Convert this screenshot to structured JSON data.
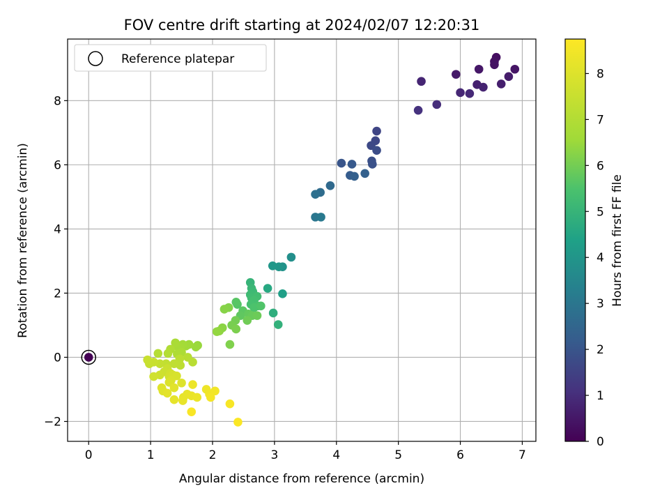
{
  "chart_data": {
    "type": "scatter",
    "title": "FOV centre drift starting at 2024/02/07 12:20:31",
    "xlabel": "Angular distance from reference (arcmin)",
    "ylabel": "Rotation from reference (arcmin)",
    "xlim": [
      -0.34,
      7.22
    ],
    "ylim": [
      -2.62,
      9.92
    ],
    "xticks": [
      0,
      1,
      2,
      3,
      4,
      5,
      6,
      7
    ],
    "yticks": [
      -2,
      0,
      2,
      4,
      6,
      8
    ],
    "xtick_labels": [
      "0",
      "1",
      "2",
      "3",
      "4",
      "5",
      "6",
      "7"
    ],
    "ytick_labels": [
      "−2",
      "0",
      "2",
      "4",
      "6",
      "8"
    ],
    "grid": true,
    "colormap": "viridis",
    "colorbar": {
      "label": "Hours from first FF file",
      "range": [
        0,
        8.75
      ],
      "ticks": [
        0,
        1,
        2,
        3,
        4,
        5,
        6,
        7,
        8
      ],
      "tick_labels": [
        "0",
        "1",
        "2",
        "3",
        "4",
        "5",
        "6",
        "7",
        "8"
      ]
    },
    "legend": {
      "position": "top-left",
      "entries": [
        "Reference platepar"
      ]
    },
    "reference_point": {
      "x": 0,
      "y": 0
    },
    "points": [
      {
        "x": 6.58,
        "y": 9.35,
        "c": 0.3
      },
      {
        "x": 6.55,
        "y": 9.22,
        "c": 0.35
      },
      {
        "x": 6.55,
        "y": 9.12,
        "c": 0.4
      },
      {
        "x": 6.88,
        "y": 8.98,
        "c": 0.45
      },
      {
        "x": 6.3,
        "y": 8.98,
        "c": 0.5
      },
      {
        "x": 5.93,
        "y": 8.82,
        "c": 0.55
      },
      {
        "x": 6.78,
        "y": 8.75,
        "c": 0.6
      },
      {
        "x": 6.66,
        "y": 8.52,
        "c": 0.65
      },
      {
        "x": 6.27,
        "y": 8.5,
        "c": 0.7
      },
      {
        "x": 6.37,
        "y": 8.42,
        "c": 0.75
      },
      {
        "x": 5.37,
        "y": 8.6,
        "c": 0.8
      },
      {
        "x": 6.0,
        "y": 8.25,
        "c": 0.85
      },
      {
        "x": 6.15,
        "y": 8.22,
        "c": 0.9
      },
      {
        "x": 5.62,
        "y": 7.88,
        "c": 1.0
      },
      {
        "x": 5.32,
        "y": 7.7,
        "c": 1.1
      },
      {
        "x": 4.65,
        "y": 7.05,
        "c": 1.6
      },
      {
        "x": 4.63,
        "y": 6.75,
        "c": 1.65
      },
      {
        "x": 4.56,
        "y": 6.6,
        "c": 1.7
      },
      {
        "x": 4.65,
        "y": 6.45,
        "c": 1.8
      },
      {
        "x": 4.57,
        "y": 6.12,
        "c": 1.85
      },
      {
        "x": 4.58,
        "y": 6.02,
        "c": 1.9
      },
      {
        "x": 4.08,
        "y": 6.05,
        "c": 2.0
      },
      {
        "x": 4.25,
        "y": 6.02,
        "c": 2.1
      },
      {
        "x": 4.22,
        "y": 5.67,
        "c": 2.2
      },
      {
        "x": 4.29,
        "y": 5.64,
        "c": 2.3
      },
      {
        "x": 4.46,
        "y": 5.73,
        "c": 2.35
      },
      {
        "x": 3.9,
        "y": 5.35,
        "c": 2.6
      },
      {
        "x": 3.74,
        "y": 5.14,
        "c": 2.7
      },
      {
        "x": 3.66,
        "y": 5.08,
        "c": 2.8
      },
      {
        "x": 3.66,
        "y": 4.37,
        "c": 3.0
      },
      {
        "x": 3.75,
        "y": 4.37,
        "c": 3.1
      },
      {
        "x": 3.27,
        "y": 3.12,
        "c": 3.8
      },
      {
        "x": 3.13,
        "y": 2.82,
        "c": 3.9
      },
      {
        "x": 3.07,
        "y": 2.82,
        "c": 4.0
      },
      {
        "x": 2.97,
        "y": 2.85,
        "c": 4.05
      },
      {
        "x": 3.13,
        "y": 1.98,
        "c": 4.3
      },
      {
        "x": 2.89,
        "y": 2.15,
        "c": 4.6
      },
      {
        "x": 2.98,
        "y": 1.38,
        "c": 4.8
      },
      {
        "x": 3.06,
        "y": 1.02,
        "c": 4.9
      },
      {
        "x": 2.61,
        "y": 2.33,
        "c": 5.0
      },
      {
        "x": 2.63,
        "y": 2.15,
        "c": 5.1
      },
      {
        "x": 2.65,
        "y": 2.05,
        "c": 5.15
      },
      {
        "x": 2.61,
        "y": 1.95,
        "c": 5.2
      },
      {
        "x": 2.63,
        "y": 1.85,
        "c": 5.25
      },
      {
        "x": 2.72,
        "y": 1.9,
        "c": 5.3
      },
      {
        "x": 2.67,
        "y": 1.78,
        "c": 5.35
      },
      {
        "x": 2.62,
        "y": 1.65,
        "c": 5.4
      },
      {
        "x": 2.73,
        "y": 1.6,
        "c": 5.45
      },
      {
        "x": 2.67,
        "y": 1.55,
        "c": 5.5
      },
      {
        "x": 2.78,
        "y": 1.6,
        "c": 5.55
      },
      {
        "x": 2.4,
        "y": 1.65,
        "c": 5.6
      },
      {
        "x": 2.38,
        "y": 1.72,
        "c": 5.65
      },
      {
        "x": 2.49,
        "y": 1.45,
        "c": 5.7
      },
      {
        "x": 2.45,
        "y": 1.3,
        "c": 5.75
      },
      {
        "x": 2.58,
        "y": 1.35,
        "c": 5.8
      },
      {
        "x": 2.64,
        "y": 1.3,
        "c": 5.85
      },
      {
        "x": 2.72,
        "y": 1.3,
        "c": 5.9
      },
      {
        "x": 2.56,
        "y": 1.15,
        "c": 5.95
      },
      {
        "x": 2.37,
        "y": 1.15,
        "c": 6.0
      },
      {
        "x": 2.31,
        "y": 1.0,
        "c": 6.05
      },
      {
        "x": 2.38,
        "y": 0.88,
        "c": 6.1
      },
      {
        "x": 2.28,
        "y": 0.4,
        "c": 6.15
      },
      {
        "x": 2.26,
        "y": 1.55,
        "c": 6.2
      },
      {
        "x": 2.19,
        "y": 1.5,
        "c": 6.25
      },
      {
        "x": 2.16,
        "y": 0.92,
        "c": 6.3
      },
      {
        "x": 2.11,
        "y": 0.82,
        "c": 6.35
      },
      {
        "x": 2.07,
        "y": 0.8,
        "c": 6.4
      },
      {
        "x": 1.76,
        "y": 0.37,
        "c": 6.45
      },
      {
        "x": 1.73,
        "y": 0.32,
        "c": 6.5
      },
      {
        "x": 1.62,
        "y": 0.4,
        "c": 6.55
      },
      {
        "x": 1.57,
        "y": 0.35,
        "c": 6.6
      },
      {
        "x": 1.52,
        "y": 0.4,
        "c": 6.65
      },
      {
        "x": 1.48,
        "y": 0.28,
        "c": 6.7
      },
      {
        "x": 1.42,
        "y": 0.35,
        "c": 6.75
      },
      {
        "x": 1.4,
        "y": 0.45,
        "c": 6.8
      },
      {
        "x": 1.5,
        "y": 0.15,
        "c": 6.85
      },
      {
        "x": 1.43,
        "y": 0.1,
        "c": 6.9
      },
      {
        "x": 1.32,
        "y": 0.25,
        "c": 6.95
      },
      {
        "x": 1.28,
        "y": 0.12,
        "c": 7.0
      },
      {
        "x": 1.12,
        "y": 0.12,
        "c": 7.05
      },
      {
        "x": 1.6,
        "y": 0.0,
        "c": 7.1
      },
      {
        "x": 1.68,
        "y": -0.15,
        "c": 7.15
      },
      {
        "x": 1.47,
        "y": -0.05,
        "c": 7.2
      },
      {
        "x": 1.48,
        "y": -0.25,
        "c": 7.25
      },
      {
        "x": 1.38,
        "y": -0.2,
        "c": 7.3
      },
      {
        "x": 1.25,
        "y": -0.2,
        "c": 7.35
      },
      {
        "x": 1.15,
        "y": -0.2,
        "c": 7.4
      },
      {
        "x": 0.98,
        "y": -0.2,
        "c": 7.45
      },
      {
        "x": 0.95,
        "y": -0.08,
        "c": 7.5
      },
      {
        "x": 1.05,
        "y": -0.15,
        "c": 7.5
      },
      {
        "x": 1.27,
        "y": -0.35,
        "c": 7.55
      },
      {
        "x": 1.22,
        "y": -0.45,
        "c": 7.6
      },
      {
        "x": 1.15,
        "y": -0.55,
        "c": 7.65
      },
      {
        "x": 1.32,
        "y": -0.5,
        "c": 7.7
      },
      {
        "x": 1.05,
        "y": -0.6,
        "c": 7.7
      },
      {
        "x": 1.3,
        "y": -0.6,
        "c": 7.75
      },
      {
        "x": 1.36,
        "y": -0.55,
        "c": 7.8
      },
      {
        "x": 1.42,
        "y": -0.58,
        "c": 7.85
      },
      {
        "x": 1.33,
        "y": -0.72,
        "c": 7.9
      },
      {
        "x": 1.3,
        "y": -0.78,
        "c": 7.95
      },
      {
        "x": 1.5,
        "y": -0.8,
        "c": 8.0
      },
      {
        "x": 1.18,
        "y": -0.95,
        "c": 8.05
      },
      {
        "x": 1.2,
        "y": -1.05,
        "c": 8.05
      },
      {
        "x": 1.38,
        "y": -0.95,
        "c": 8.1
      },
      {
        "x": 1.27,
        "y": -1.12,
        "c": 8.15
      },
      {
        "x": 1.38,
        "y": -1.32,
        "c": 8.2
      },
      {
        "x": 1.53,
        "y": -1.25,
        "c": 8.2
      },
      {
        "x": 1.52,
        "y": -1.35,
        "c": 8.25
      },
      {
        "x": 1.59,
        "y": -1.15,
        "c": 8.25
      },
      {
        "x": 1.66,
        "y": -1.2,
        "c": 8.3
      },
      {
        "x": 1.75,
        "y": -1.25,
        "c": 8.35
      },
      {
        "x": 1.68,
        "y": -0.85,
        "c": 8.35
      },
      {
        "x": 1.9,
        "y": -1.0,
        "c": 8.4
      },
      {
        "x": 1.95,
        "y": -1.15,
        "c": 8.45
      },
      {
        "x": 2.04,
        "y": -1.05,
        "c": 8.5
      },
      {
        "x": 1.97,
        "y": -1.25,
        "c": 8.55
      },
      {
        "x": 2.28,
        "y": -1.45,
        "c": 8.6
      },
      {
        "x": 1.66,
        "y": -1.7,
        "c": 8.65
      },
      {
        "x": 2.41,
        "y": -2.02,
        "c": 8.7
      },
      {
        "x": 0.0,
        "y": 0.0,
        "c": 0.0
      }
    ]
  }
}
